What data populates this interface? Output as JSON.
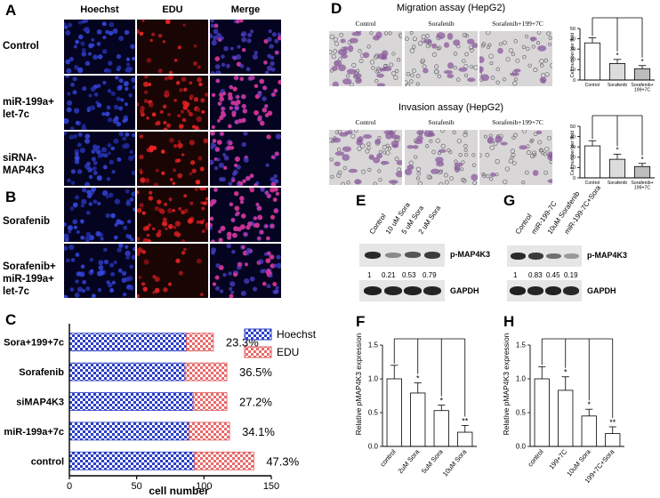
{
  "panels": {
    "A": "A",
    "B": "B",
    "C": "C",
    "D": "D",
    "E": "E",
    "F": "F",
    "G": "G",
    "H": "H"
  },
  "panel_a": {
    "columns": [
      "Hoechst",
      "EDU",
      "Merge"
    ],
    "rows": [
      "Control",
      "miR-199a+\nlet-7c",
      "siRNA-\nMAP4K3",
      "Sorafenib",
      "Sorafenib+\nmiR-199a+\nlet-7c"
    ]
  },
  "panel_d": {
    "migration_title": "Migration assay (HepG2)",
    "invasion_title": "Invasion assay (HepG2)",
    "captions": [
      "Control",
      "Sorafenib",
      "Sorafenib+199+7C"
    ],
    "migration_chart": {
      "ylabel": "Cell number per field",
      "categories": [
        "Control",
        "Sorafenib",
        "Sorafenib+\n199+7C"
      ],
      "values": [
        36,
        16,
        11
      ],
      "errors": [
        5,
        4,
        3
      ],
      "stars": [
        "",
        "*",
        "*"
      ],
      "ylim": [
        0,
        50
      ],
      "yticks": [
        0,
        10,
        20,
        30,
        40,
        50
      ]
    },
    "invasion_chart": {
      "ylabel": "Cell number per field",
      "categories": [
        "Control",
        "Sorafenib",
        "Sorafenib+\n199+7C"
      ],
      "values": [
        31,
        18,
        11
      ],
      "errors": [
        5,
        5,
        3
      ],
      "stars": [
        "",
        "*",
        "*"
      ],
      "ylim": [
        0,
        50
      ],
      "yticks": [
        0,
        10,
        20,
        30,
        40,
        50
      ]
    }
  },
  "panel_e": {
    "lanes": [
      "Control",
      "10 uM Sora",
      "5 uM Sora",
      "2 uM Sora"
    ],
    "target": "p-MAP4K3",
    "loading": "GAPDH",
    "ratios": [
      "1",
      "0.21",
      "0.53",
      "0.79"
    ]
  },
  "panel_g": {
    "lanes": [
      "Control",
      "miR-199-7C",
      "10uM Sorafenib",
      "miR-199-7C+Sora"
    ],
    "target": "p-MAP4K3",
    "loading": "GAPDH",
    "ratios": [
      "1",
      "0.83",
      "0.45",
      "0.19"
    ]
  },
  "chart_data": [
    {
      "id": "C",
      "type": "bar",
      "orientation": "horizontal",
      "stacked": true,
      "categories": [
        "Sora+199+7c",
        "Sorafenib",
        "siMAP4K3",
        "miR-199a+7c",
        "control"
      ],
      "series": [
        {
          "name": "Hoechst",
          "values": [
            87,
            86,
            92,
            89,
            93
          ],
          "color": "#2b3fc9"
        },
        {
          "name": "EDU",
          "values": [
            20,
            31,
            25,
            30,
            44
          ],
          "color": "#e05a5a"
        }
      ],
      "percent_labels": [
        "23.3%",
        "36.5%",
        "27.2%",
        "34.1%",
        "47.3%"
      ],
      "xlabel": "cell number",
      "xlim": [
        0,
        150
      ],
      "xticks": [
        0,
        50,
        100,
        150
      ],
      "legend": "top-right"
    },
    {
      "id": "F",
      "type": "bar",
      "categories": [
        "control",
        "2uM Sora",
        "5uM Sora",
        "10uM Sora"
      ],
      "values": [
        1.0,
        0.79,
        0.53,
        0.21
      ],
      "errors": [
        0.2,
        0.15,
        0.08,
        0.1
      ],
      "stars": [
        "",
        "*",
        "*",
        "**"
      ],
      "ylabel": "Relative pMAP4K3 expression",
      "ylim": [
        0,
        1.5
      ],
      "yticks": [
        "0.0",
        "0.5",
        "1.0",
        "1.5"
      ]
    },
    {
      "id": "H",
      "type": "bar",
      "categories": [
        "control",
        "199+7C",
        "10uM Sora",
        "199+7C+Sora"
      ],
      "values": [
        1.0,
        0.83,
        0.45,
        0.19
      ],
      "errors": [
        0.18,
        0.2,
        0.1,
        0.1
      ],
      "stars": [
        "",
        "*",
        "*",
        "**"
      ],
      "ylabel": "Relative pMAP4K3 expression",
      "ylim": [
        0,
        1.5
      ],
      "yticks": [
        "0.0",
        "0.5",
        "1.0",
        "1.5"
      ]
    }
  ]
}
